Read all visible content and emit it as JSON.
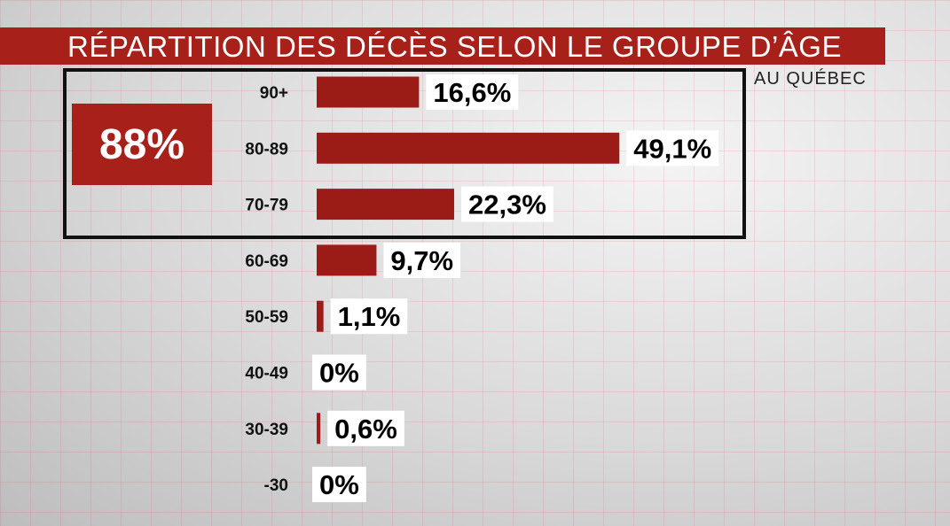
{
  "title": "RÉPARTITION DES DÉCÈS SELON LE GROUPE D’ÂGE",
  "subtitle": "AU QUÉBEC",
  "highlight": {
    "value_label": "88%",
    "group_count": 3
  },
  "colors": {
    "bar": "#9b1c17",
    "accent": "#a8201a",
    "label_box": "#ffffff"
  },
  "chart_data": {
    "type": "bar",
    "orientation": "horizontal",
    "title": "RÉPARTITION DES DÉCÈS SELON LE GROUPE D’ÂGE",
    "subtitle": "AU QUÉBEC",
    "categories": [
      "90+",
      "80-89",
      "70-79",
      "60-69",
      "50-59",
      "40-49",
      "30-39",
      "-30"
    ],
    "values": [
      16.6,
      49.1,
      22.3,
      9.7,
      1.1,
      0,
      0.6,
      0
    ],
    "value_labels": [
      "16,6%",
      "49,1%",
      "22,3%",
      "9,7%",
      "1,1%",
      "0%",
      "0,6%",
      "0%"
    ],
    "unit": "%",
    "grid": false
  }
}
